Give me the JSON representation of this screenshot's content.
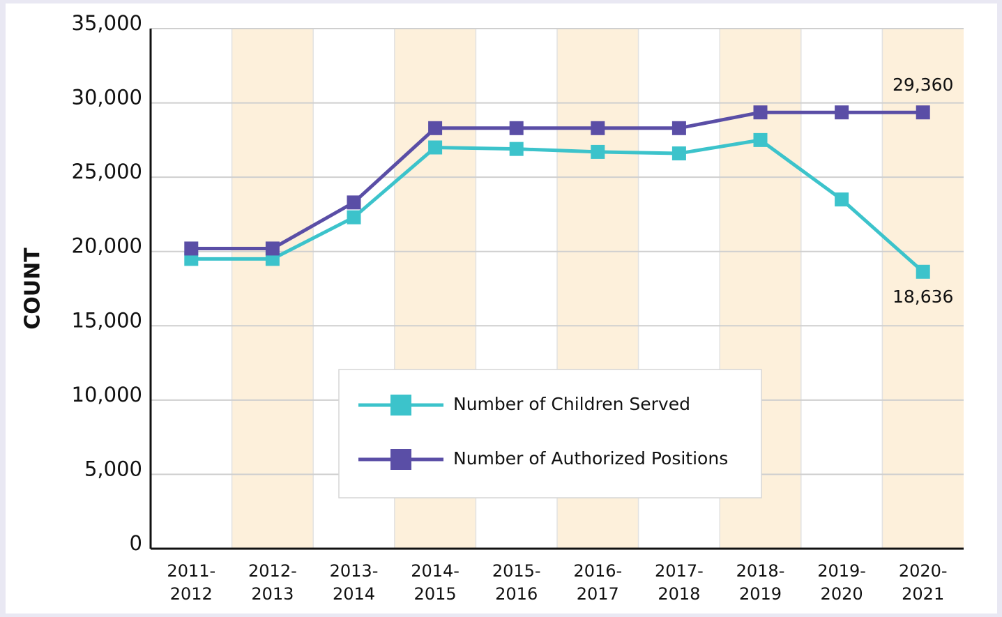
{
  "chart_data": {
    "type": "line",
    "y_label": "COUNT",
    "categories": [
      "2011-\n2012",
      "2012-\n2013",
      "2013-\n2014",
      "2014-\n2015",
      "2015-\n2016",
      "2016-\n2017",
      "2017-\n2018",
      "2018-\n2019",
      "2019-\n2020",
      "2020-\n2021"
    ],
    "series": [
      {
        "name": "Number of Children Served",
        "color": "#3cc3cb",
        "values": [
          19500,
          19500,
          22300,
          27000,
          26900,
          26700,
          26600,
          27500,
          23500,
          18636
        ],
        "value_labels": [
          null,
          null,
          null,
          null,
          null,
          null,
          null,
          null,
          null,
          "18,636"
        ]
      },
      {
        "name": "Number of Authorized Positions",
        "color": "#5a4ea6",
        "values": [
          20200,
          20200,
          23300,
          28300,
          28300,
          28300,
          28300,
          29360,
          29360,
          29360
        ],
        "value_labels": [
          null,
          null,
          null,
          null,
          null,
          null,
          null,
          null,
          null,
          "29,360"
        ]
      }
    ],
    "ylim": [
      0,
      35000
    ],
    "yticks": [
      0,
      {
        "value": 5000,
        "label": "5,000"
      },
      {
        "value": 10000,
        "label": "10,000"
      },
      {
        "value": 15000,
        "label": "15,000"
      },
      {
        "value": 20000,
        "label": "20,000"
      },
      {
        "value": 25000,
        "label": "25,000"
      },
      {
        "value": 30000,
        "label": "30,000"
      },
      {
        "value": 35000,
        "label": "35,000"
      }
    ],
    "grid": true,
    "band_color": "#fdf0db"
  }
}
